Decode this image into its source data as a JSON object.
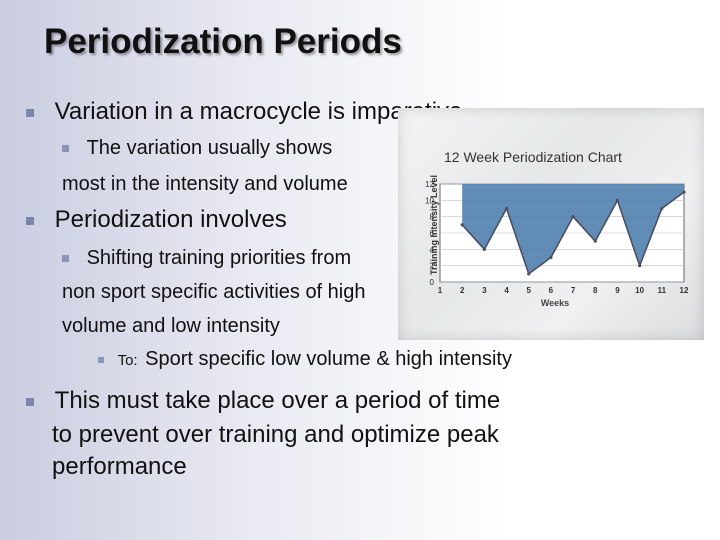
{
  "slide": {
    "title": "Periodization Periods",
    "bullets": {
      "b1": "Variation in a macrocycle is imparative",
      "b1a_line1": "The variation usually shows",
      "b1a_line2": "most in the intensity and volume",
      "b2": "Periodization involves",
      "b2a_line1": "Shifting training priorities from",
      "b2a_line2": "non sport specific activities of high",
      "b2a_line3": "volume and low intensity",
      "b2a_i_prefix": "To:",
      "b2a_i_text": "Sport specific low volume & high intensity",
      "b3_line1": "This must take place over a period of time",
      "b3_line2": "to prevent over training and optimize peak",
      "b3_line3": "performance"
    }
  },
  "colors": {
    "bullet_marker": "#7b86ad",
    "chart_fill": "#4f7fae",
    "chart_fill_light": "#9bb9d5",
    "chart_line": "#4a4f63",
    "chart_plot_bg": "#ffffff"
  },
  "chart_data": {
    "type": "area",
    "title": "12 Week Periodization Chart",
    "xlabel": "Weeks",
    "ylabel": "Training Intensity Level",
    "x": [
      1,
      2,
      3,
      4,
      5,
      6,
      7,
      8,
      9,
      10,
      11,
      12
    ],
    "values": [
      null,
      7,
      4,
      9,
      1,
      3,
      8,
      5,
      10,
      2,
      9,
      11
    ],
    "yticks": [
      0,
      2,
      4,
      6,
      8,
      10,
      12
    ],
    "ylim": [
      0,
      12
    ],
    "grid": true
  }
}
